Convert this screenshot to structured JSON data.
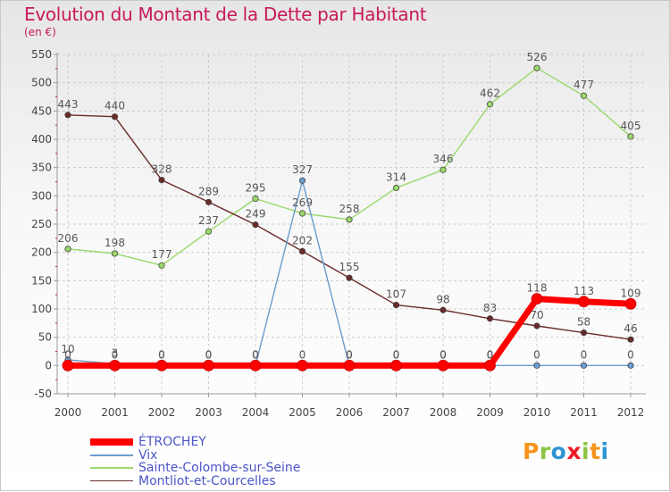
{
  "header": {
    "title": "Evolution du Montant de la Dette par Habitant",
    "unit": "(en €)"
  },
  "logo": {
    "text": "Proxiti",
    "colors": [
      "#f7941d",
      "#8bc53f",
      "#2e95d3",
      "#ed1c24",
      "#8bc53f",
      "#f7941d",
      "#2e95d3"
    ]
  },
  "chart_data": {
    "type": "line",
    "title": "Evolution du Montant de la Dette par Habitant",
    "subtitle": "(en €)",
    "xlabel": "",
    "ylabel": "",
    "x": [
      "2000",
      "2001",
      "2002",
      "2003",
      "2004",
      "2005",
      "2006",
      "2007",
      "2008",
      "2009",
      "2010",
      "2011",
      "2012"
    ],
    "ylim": [
      -50,
      550
    ],
    "yticks": [
      -50,
      0,
      50,
      100,
      150,
      200,
      250,
      300,
      350,
      400,
      450,
      500,
      550
    ],
    "grid": true,
    "legend_position": "bottom-left",
    "series": [
      {
        "name": "ÉTROCHEY",
        "color": "#ff0000",
        "values": [
          0,
          0,
          0,
          0,
          0,
          0,
          0,
          0,
          0,
          0,
          118,
          113,
          109
        ],
        "labels": [
          "0",
          "0",
          "0",
          "0",
          "0",
          "0",
          "0",
          "0",
          "0",
          "0",
          "118",
          "113",
          "109"
        ]
      },
      {
        "name": "Vix",
        "color": "#6a9ccf",
        "values": [
          10,
          3,
          0,
          0,
          0,
          327,
          0,
          0,
          0,
          0,
          0,
          0,
          0
        ],
        "labels": [
          "10",
          "3",
          "0",
          "0",
          "0",
          "327",
          "0",
          "0",
          "0",
          "0",
          "0",
          "0",
          "0"
        ]
      },
      {
        "name": "Sainte-Colombe-sur-Seine",
        "color": "#99d86a",
        "values": [
          206,
          198,
          177,
          237,
          295,
          269,
          258,
          314,
          346,
          462,
          526,
          477,
          405
        ],
        "labels": [
          "206",
          "198",
          "177",
          "237",
          "295",
          "269",
          "258",
          "314",
          "346",
          "462",
          "526",
          "477",
          "405"
        ]
      },
      {
        "name": "Montliot-et-Courcelles",
        "color": "#6b2a2a",
        "values": [
          443,
          440,
          328,
          289,
          249,
          202,
          155,
          107,
          98,
          83,
          70,
          58,
          46
        ],
        "labels": [
          "443",
          "440",
          "328",
          "289",
          "249",
          "202",
          "155",
          "107",
          "98",
          "83",
          "70",
          "58",
          "46"
        ]
      }
    ]
  }
}
